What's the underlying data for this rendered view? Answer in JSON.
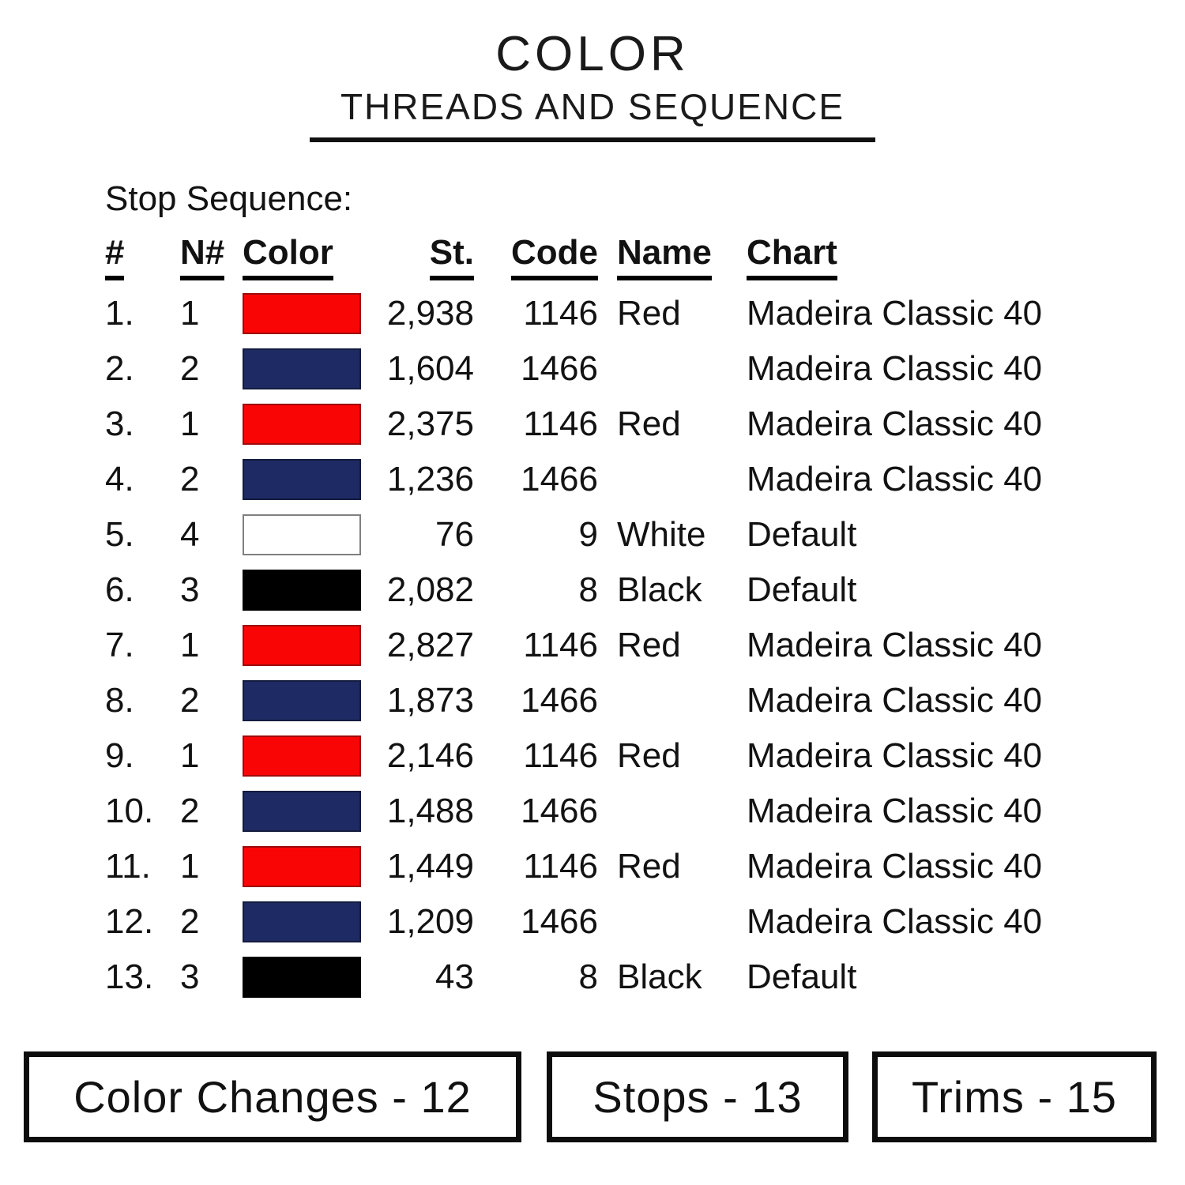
{
  "title": "COLOR",
  "subtitle": "THREADS AND SEQUENCE",
  "section_label": "Stop Sequence:",
  "table": {
    "headers": {
      "num": "#",
      "needle": "N#",
      "color": "Color",
      "stitches": "St.",
      "code": "Code",
      "name": "Name",
      "chart": "Chart"
    },
    "rows": [
      {
        "num": "1.",
        "needle": "1",
        "swatch": "#fa0505",
        "swatch_border": "#9e0b0b",
        "stitches": "2,938",
        "code": "1146",
        "name": "Red",
        "chart": "Madeira Classic 40"
      },
      {
        "num": "2.",
        "needle": "2",
        "swatch": "#1e2a63",
        "swatch_border": "#141c3f",
        "stitches": "1,604",
        "code": "1466",
        "name": "",
        "chart": "Madeira Classic 40"
      },
      {
        "num": "3.",
        "needle": "1",
        "swatch": "#fa0505",
        "swatch_border": "#9e0b0b",
        "stitches": "2,375",
        "code": "1146",
        "name": "Red",
        "chart": "Madeira Classic 40"
      },
      {
        "num": "4.",
        "needle": "2",
        "swatch": "#1e2a63",
        "swatch_border": "#141c3f",
        "stitches": "1,236",
        "code": "1466",
        "name": "",
        "chart": "Madeira Classic 40"
      },
      {
        "num": "5.",
        "needle": "4",
        "swatch": "#ffffff",
        "swatch_border": "#808080",
        "stitches": "76",
        "code": "9",
        "name": "White",
        "chart": "Default"
      },
      {
        "num": "6.",
        "needle": "3",
        "swatch": "#000000",
        "swatch_border": "#000000",
        "stitches": "2,082",
        "code": "8",
        "name": "Black",
        "chart": "Default"
      },
      {
        "num": "7.",
        "needle": "1",
        "swatch": "#fa0505",
        "swatch_border": "#9e0b0b",
        "stitches": "2,827",
        "code": "1146",
        "name": "Red",
        "chart": "Madeira Classic 40"
      },
      {
        "num": "8.",
        "needle": "2",
        "swatch": "#1e2a63",
        "swatch_border": "#141c3f",
        "stitches": "1,873",
        "code": "1466",
        "name": "",
        "chart": "Madeira Classic 40"
      },
      {
        "num": "9.",
        "needle": "1",
        "swatch": "#fa0505",
        "swatch_border": "#9e0b0b",
        "stitches": "2,146",
        "code": "1146",
        "name": "Red",
        "chart": "Madeira Classic 40"
      },
      {
        "num": "10.",
        "needle": "2",
        "swatch": "#1e2a63",
        "swatch_border": "#141c3f",
        "stitches": "1,488",
        "code": "1466",
        "name": "",
        "chart": "Madeira Classic 40"
      },
      {
        "num": "11.",
        "needle": "1",
        "swatch": "#fa0505",
        "swatch_border": "#9e0b0b",
        "stitches": "1,449",
        "code": "1146",
        "name": "Red",
        "chart": "Madeira Classic 40"
      },
      {
        "num": "12.",
        "needle": "2",
        "swatch": "#1e2a63",
        "swatch_border": "#141c3f",
        "stitches": "1,209",
        "code": "1466",
        "name": "",
        "chart": "Madeira Classic 40"
      },
      {
        "num": "13.",
        "needle": "3",
        "swatch": "#000000",
        "swatch_border": "#000000",
        "stitches": "43",
        "code": "8",
        "name": "Black",
        "chart": "Default"
      }
    ]
  },
  "summary": {
    "color_changes": "Color Changes - 12",
    "stops": "Stops - 13",
    "trims": "Trims - 15"
  },
  "colors": {
    "thread_red": "#fa0505",
    "thread_navy": "#1e2a63",
    "thread_white": "#ffffff",
    "thread_black": "#000000",
    "ink": "#111111"
  }
}
